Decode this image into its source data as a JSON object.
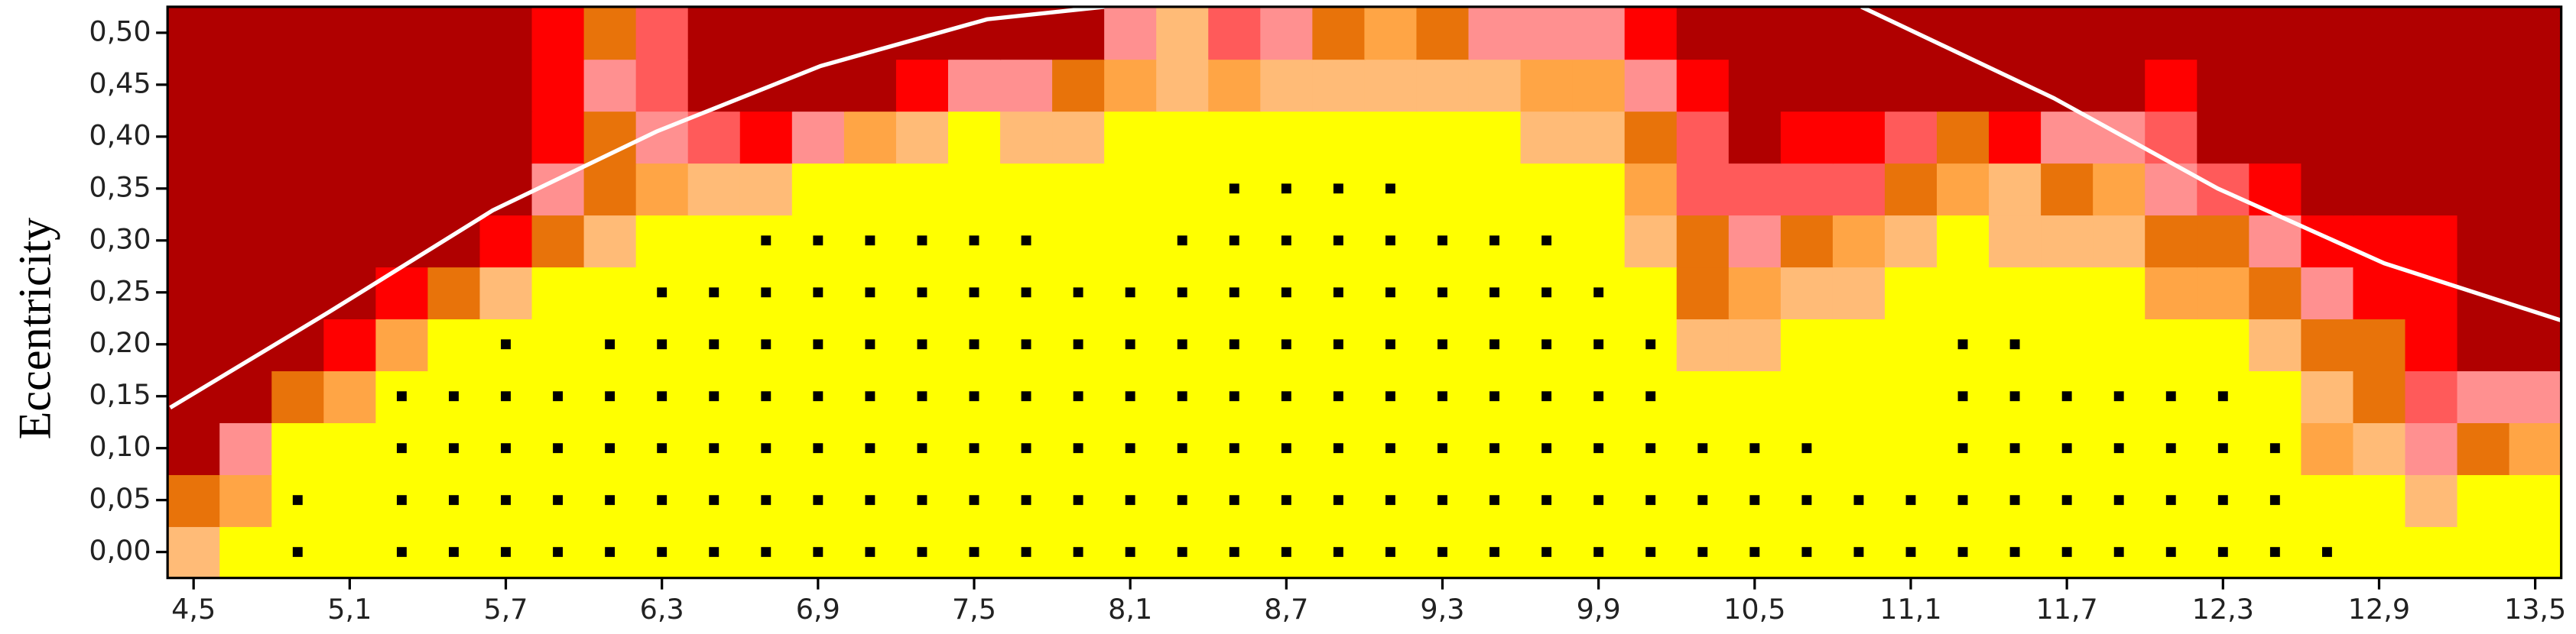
{
  "chart_data": {
    "type": "heatmap",
    "y_label": "Eccentricity",
    "x": [
      4.5,
      4.7,
      4.9,
      5.1,
      5.3,
      5.5,
      5.7,
      5.9,
      6.1,
      6.3,
      6.5,
      6.7,
      6.9,
      7.1,
      7.3,
      7.5,
      7.7,
      7.9,
      8.1,
      8.3,
      8.5,
      8.7,
      8.9,
      9.1,
      9.3,
      9.5,
      9.7,
      9.9,
      10.1,
      10.3,
      10.5,
      10.7,
      10.9,
      11.1,
      11.3,
      11.5,
      11.7,
      11.9,
      12.1,
      12.3,
      12.5,
      12.7,
      12.9,
      13.1,
      13.3,
      13.5
    ],
    "y": [
      0,
      0.05,
      0.1,
      0.15,
      0.2,
      0.25,
      0.3,
      0.35,
      0.4,
      0.45,
      0.5
    ],
    "colorscale": [
      "#ffff00",
      "#ffbb77",
      "#ffa545",
      "#e8730a",
      "#ff9090",
      "#ff5a5a",
      "#ff0000",
      "#b00000"
    ],
    "z": [
      [
        1,
        0,
        0,
        0,
        0,
        0,
        0,
        0,
        0,
        0,
        0,
        0,
        0,
        0,
        0,
        0,
        0,
        0,
        0,
        0,
        0,
        0,
        0,
        0,
        0,
        0,
        0,
        0,
        0,
        0,
        0,
        0,
        0,
        0,
        0,
        0,
        0,
        0,
        0,
        0,
        0,
        0,
        0,
        0,
        0,
        0
      ],
      [
        3,
        2,
        0,
        0,
        0,
        0,
        0,
        0,
        0,
        0,
        0,
        0,
        0,
        0,
        0,
        0,
        0,
        0,
        0,
        0,
        0,
        0,
        0,
        0,
        0,
        0,
        0,
        0,
        0,
        0,
        0,
        0,
        0,
        0,
        0,
        0,
        0,
        0,
        0,
        0,
        0,
        0,
        0,
        1,
        0,
        0
      ],
      [
        7,
        4,
        0,
        0,
        0,
        0,
        0,
        0,
        0,
        0,
        0,
        0,
        0,
        0,
        0,
        0,
        0,
        0,
        0,
        0,
        0,
        0,
        0,
        0,
        0,
        0,
        0,
        0,
        0,
        0,
        0,
        0,
        0,
        0,
        0,
        0,
        0,
        0,
        0,
        0,
        0,
        2,
        1,
        4,
        3,
        2
      ],
      [
        7,
        7,
        3,
        2,
        0,
        0,
        0,
        0,
        0,
        0,
        0,
        0,
        0,
        0,
        0,
        0,
        0,
        0,
        0,
        0,
        0,
        0,
        0,
        0,
        0,
        0,
        0,
        0,
        0,
        0,
        0,
        0,
        0,
        0,
        0,
        0,
        0,
        0,
        0,
        0,
        0,
        1,
        3,
        5,
        4,
        4
      ],
      [
        7,
        7,
        7,
        6,
        2,
        0,
        0,
        0,
        0,
        0,
        0,
        0,
        0,
        0,
        0,
        0,
        0,
        0,
        0,
        0,
        0,
        0,
        0,
        0,
        0,
        0,
        0,
        0,
        0,
        1,
        1,
        0,
        0,
        0,
        0,
        0,
        0,
        0,
        0,
        0,
        1,
        3,
        3,
        6,
        7,
        7
      ],
      [
        7,
        7,
        7,
        7,
        6,
        3,
        1,
        0,
        0,
        0,
        0,
        0,
        0,
        0,
        0,
        0,
        0,
        0,
        0,
        0,
        0,
        0,
        0,
        0,
        0,
        0,
        0,
        0,
        0,
        3,
        2,
        1,
        1,
        0,
        0,
        0,
        0,
        0,
        2,
        2,
        3,
        4,
        6,
        6,
        7,
        7
      ],
      [
        7,
        7,
        7,
        7,
        7,
        7,
        6,
        3,
        1,
        0,
        0,
        0,
        0,
        0,
        0,
        0,
        0,
        0,
        0,
        0,
        0,
        0,
        0,
        0,
        0,
        0,
        0,
        0,
        1,
        3,
        4,
        3,
        2,
        1,
        0,
        1,
        1,
        1,
        3,
        3,
        4,
        6,
        6,
        6,
        7,
        7
      ],
      [
        7,
        7,
        7,
        7,
        7,
        7,
        7,
        4,
        3,
        2,
        1,
        1,
        0,
        0,
        0,
        0,
        0,
        0,
        0,
        0,
        0,
        0,
        0,
        0,
        0,
        0,
        0,
        0,
        2,
        5,
        5,
        5,
        5,
        3,
        2,
        1,
        3,
        2,
        4,
        5,
        6,
        7,
        7,
        7,
        7,
        7
      ],
      [
        7,
        7,
        7,
        7,
        7,
        7,
        7,
        6,
        3,
        4,
        5,
        6,
        4,
        2,
        1,
        0,
        1,
        1,
        0,
        0,
        0,
        0,
        0,
        0,
        0,
        0,
        1,
        1,
        3,
        5,
        7,
        6,
        6,
        5,
        3,
        6,
        4,
        4,
        5,
        7,
        7,
        7,
        7,
        7,
        7,
        7
      ],
      [
        7,
        7,
        7,
        7,
        7,
        7,
        7,
        6,
        4,
        5,
        7,
        7,
        7,
        7,
        6,
        4,
        4,
        3,
        2,
        1,
        2,
        1,
        1,
        1,
        1,
        1,
        2,
        2,
        4,
        6,
        7,
        7,
        7,
        7,
        7,
        7,
        7,
        7,
        6,
        7,
        7,
        7,
        7,
        7,
        7,
        7
      ],
      [
        7,
        7,
        7,
        7,
        7,
        7,
        7,
        6,
        3,
        5,
        7,
        7,
        7,
        7,
        7,
        7,
        7,
        7,
        4,
        1,
        5,
        4,
        3,
        2,
        3,
        4,
        4,
        4,
        6,
        7,
        7,
        7,
        7,
        7,
        7,
        7,
        7,
        7,
        7,
        7,
        7,
        7,
        7,
        7,
        7,
        7
      ]
    ],
    "markers": [
      [
        0,
        0,
        1,
        0,
        1,
        1,
        1,
        1,
        1,
        1,
        1,
        1,
        1,
        1,
        1,
        1,
        1,
        1,
        1,
        1,
        1,
        1,
        1,
        1,
        1,
        1,
        1,
        1,
        1,
        1,
        1,
        1,
        1,
        1,
        1,
        1,
        1,
        1,
        1,
        1,
        1,
        1,
        0,
        0,
        0,
        0
      ],
      [
        0,
        0,
        1,
        0,
        1,
        1,
        1,
        1,
        1,
        1,
        1,
        1,
        1,
        1,
        1,
        1,
        1,
        1,
        1,
        1,
        1,
        1,
        1,
        1,
        1,
        1,
        1,
        1,
        1,
        1,
        1,
        1,
        1,
        1,
        1,
        1,
        1,
        1,
        1,
        1,
        1,
        0,
        0,
        0,
        0,
        0
      ],
      [
        0,
        0,
        0,
        0,
        1,
        1,
        1,
        1,
        1,
        1,
        1,
        1,
        1,
        1,
        1,
        1,
        1,
        1,
        1,
        1,
        1,
        1,
        1,
        1,
        1,
        1,
        1,
        1,
        1,
        1,
        1,
        1,
        0,
        0,
        1,
        1,
        1,
        1,
        1,
        1,
        1,
        0,
        0,
        0,
        0,
        0
      ],
      [
        0,
        0,
        0,
        0,
        1,
        1,
        1,
        1,
        1,
        1,
        1,
        1,
        1,
        1,
        1,
        1,
        1,
        1,
        1,
        1,
        1,
        1,
        1,
        1,
        1,
        1,
        1,
        1,
        1,
        0,
        0,
        0,
        0,
        0,
        1,
        1,
        1,
        1,
        1,
        1,
        0,
        0,
        0,
        0,
        0,
        0
      ],
      [
        0,
        0,
        0,
        0,
        0,
        0,
        1,
        0,
        1,
        1,
        1,
        1,
        1,
        1,
        1,
        1,
        1,
        1,
        1,
        1,
        1,
        1,
        1,
        1,
        1,
        1,
        1,
        1,
        1,
        0,
        0,
        0,
        0,
        0,
        1,
        1,
        0,
        0,
        0,
        0,
        0,
        0,
        0,
        0,
        0,
        0
      ],
      [
        0,
        0,
        0,
        0,
        0,
        0,
        0,
        0,
        0,
        1,
        1,
        1,
        1,
        1,
        1,
        1,
        1,
        1,
        1,
        1,
        1,
        1,
        1,
        1,
        1,
        1,
        1,
        1,
        0,
        0,
        0,
        0,
        0,
        0,
        0,
        0,
        0,
        0,
        0,
        0,
        0,
        0,
        0,
        0,
        0,
        0
      ],
      [
        0,
        0,
        0,
        0,
        0,
        0,
        0,
        0,
        0,
        0,
        0,
        1,
        1,
        1,
        1,
        1,
        1,
        0,
        0,
        1,
        1,
        1,
        1,
        1,
        1,
        1,
        1,
        0,
        0,
        0,
        0,
        0,
        0,
        0,
        0,
        0,
        0,
        0,
        0,
        0,
        0,
        0,
        0,
        0,
        0,
        0
      ],
      [
        0,
        0,
        0,
        0,
        0,
        0,
        0,
        0,
        0,
        0,
        0,
        0,
        0,
        0,
        0,
        0,
        0,
        0,
        0,
        0,
        1,
        1,
        1,
        1,
        0,
        0,
        0,
        0,
        0,
        0,
        0,
        0,
        0,
        0,
        0,
        0,
        0,
        0,
        0,
        0,
        0,
        0,
        0,
        0,
        0,
        0
      ],
      [
        0,
        0,
        0,
        0,
        0,
        0,
        0,
        0,
        0,
        0,
        0,
        0,
        0,
        0,
        0,
        0,
        0,
        0,
        0,
        0,
        0,
        0,
        0,
        0,
        0,
        0,
        0,
        0,
        0,
        0,
        0,
        0,
        0,
        0,
        0,
        0,
        0,
        0,
        0,
        0,
        0,
        0,
        0,
        0,
        0,
        0
      ],
      [
        0,
        0,
        0,
        0,
        0,
        0,
        0,
        0,
        0,
        0,
        0,
        0,
        0,
        0,
        0,
        0,
        0,
        0,
        0,
        0,
        0,
        0,
        0,
        0,
        0,
        0,
        0,
        0,
        0,
        0,
        0,
        0,
        0,
        0,
        0,
        0,
        0,
        0,
        0,
        0,
        0,
        0,
        0,
        0,
        0,
        0
      ],
      [
        0,
        0,
        0,
        0,
        0,
        0,
        0,
        0,
        0,
        0,
        0,
        0,
        0,
        0,
        0,
        0,
        0,
        0,
        0,
        0,
        0,
        0,
        0,
        0,
        0,
        0,
        0,
        0,
        0,
        0,
        0,
        0,
        0,
        0,
        0,
        0,
        0,
        0,
        0,
        0,
        0,
        0,
        0,
        0,
        0,
        0
      ]
    ],
    "marker_color": "#000000",
    "curves": [
      {
        "color": "#ffffff",
        "x": [
          4.41,
          5.02,
          5.65,
          6.28,
          6.91,
          7.55,
          8.0
        ],
        "y": [
          0.139,
          0.231,
          0.329,
          0.405,
          0.468,
          0.513,
          0.525
        ]
      },
      {
        "color": "#ffffff",
        "x": [
          10.91,
          11.65,
          12.28,
          12.92,
          13.6
        ],
        "y": [
          0.525,
          0.437,
          0.35,
          0.278,
          0.223
        ]
      }
    ],
    "xlim": [
      4.4,
      13.6
    ],
    "ylim": [
      -0.025,
      0.525
    ],
    "xticks": [
      {
        "value": 4.5,
        "label": "4,5"
      },
      {
        "value": 5.1,
        "label": "5,1"
      },
      {
        "value": 5.7,
        "label": "5,7"
      },
      {
        "value": 6.3,
        "label": "6,3"
      },
      {
        "value": 6.9,
        "label": "6,9"
      },
      {
        "value": 7.5,
        "label": "7,5"
      },
      {
        "value": 8.1,
        "label": "8,1"
      },
      {
        "value": 8.7,
        "label": "8,7"
      },
      {
        "value": 9.3,
        "label": "9,3"
      },
      {
        "value": 9.9,
        "label": "9,9"
      },
      {
        "value": 10.5,
        "label": "10,5"
      },
      {
        "value": 11.1,
        "label": "11,1"
      },
      {
        "value": 11.7,
        "label": "11,7"
      },
      {
        "value": 12.3,
        "label": "12,3"
      },
      {
        "value": 12.9,
        "label": "12,9"
      },
      {
        "value": 13.5,
        "label": "13,5"
      }
    ],
    "yticks": [
      {
        "value": 0,
        "label": "0,00"
      },
      {
        "value": 0.05,
        "label": "0,05"
      },
      {
        "value": 0.1,
        "label": "0,10"
      },
      {
        "value": 0.15,
        "label": "0,15"
      },
      {
        "value": 0.2,
        "label": "0,20"
      },
      {
        "value": 0.25,
        "label": "0,25"
      },
      {
        "value": 0.3,
        "label": "0,30"
      },
      {
        "value": 0.35,
        "label": "0,35"
      },
      {
        "value": 0.4,
        "label": "0,40"
      },
      {
        "value": 0.45,
        "label": "0,45"
      },
      {
        "value": 0.5,
        "label": "0,50"
      }
    ]
  }
}
